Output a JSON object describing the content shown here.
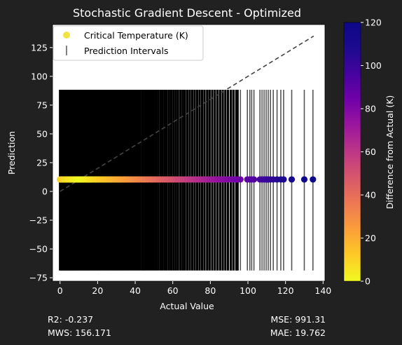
{
  "chart_data": {
    "type": "scatter",
    "title": "Stochastic Gradient Descent - Optimized",
    "xlabel": "Actual Value",
    "ylabel": "Prediction",
    "xlim": [
      -4,
      141
    ],
    "ylim": [
      -78,
      145
    ],
    "xticks": [
      0,
      20,
      40,
      60,
      80,
      100,
      120,
      140
    ],
    "yticks": [
      -75,
      -50,
      -25,
      0,
      25,
      50,
      75,
      100,
      125
    ],
    "prediction_value": 10.4,
    "interval": [
      -68.7,
      88.3
    ],
    "x_values": [
      0.0,
      0.5,
      1.0,
      1.5,
      2.0,
      2.6,
      3.1,
      3.6,
      4.2,
      4.8,
      5.3,
      5.9,
      6.5,
      7.0,
      7.6,
      8.2,
      8.8,
      9.4,
      10.1,
      10.7,
      11.3,
      12.0,
      12.6,
      13.3,
      14.0,
      14.6,
      15.3,
      16.0,
      16.7,
      17.4,
      18.2,
      18.9,
      19.6,
      20.4,
      21.1,
      21.9,
      22.7,
      23.5,
      24.3,
      25.1,
      25.9,
      26.7,
      27.6,
      28.4,
      29.3,
      30.2,
      31.1,
      32.0,
      32.9,
      33.8,
      34.7,
      35.6,
      36.6,
      37.5,
      38.5,
      39.5,
      40.5,
      41.5,
      42.5,
      43.6,
      44.6,
      45.6,
      46.7,
      47.8,
      48.9,
      50.0,
      51.1,
      52.2,
      53.4,
      54.5,
      55.7,
      56.8,
      58.0,
      59.2,
      60.4,
      61.6,
      62.8,
      64.1,
      65.3,
      66.5,
      67.8,
      69.1,
      70.4,
      71.7,
      73.0,
      74.3,
      75.6,
      76.9,
      78.3,
      79.6,
      81.0,
      82.4,
      83.8,
      85.2,
      86.6,
      88.0,
      89.4,
      90.9,
      92.3,
      93.8,
      94.5,
      96.0,
      99.7,
      101.0,
      102.0,
      103.2,
      106.4,
      107.5,
      108.6,
      109.7,
      110.8,
      112.0,
      113.5,
      115.5,
      117.5,
      119.0,
      123.3,
      130.0,
      134.6
    ],
    "errors_description_only": false,
    "reference_line": {
      "from": [
        0,
        0
      ],
      "to": [
        135,
        135
      ],
      "style": "dashed"
    },
    "colorbar": {
      "label": "Difference from Actual (K)",
      "range": [
        0,
        120
      ],
      "ticks": [
        0,
        20,
        40,
        60,
        80,
        100,
        120
      ],
      "colormap": "plasma_r"
    },
    "legend": {
      "position": "top-left",
      "entries": [
        "Critical Temperature (K)",
        "Prediction Intervals"
      ]
    },
    "grid": false
  },
  "metrics": {
    "r2": "R2: -0.237",
    "mws": "MWS: 156.171",
    "mse": "MSE: 991.31",
    "mae": "MAE: 19.762"
  },
  "colors": {
    "figure_bg": "#212121",
    "axes_bg": "#ffffff",
    "interval_line": "#000000",
    "interval_line_sparse": "#555555",
    "reference_line": "#444444"
  }
}
